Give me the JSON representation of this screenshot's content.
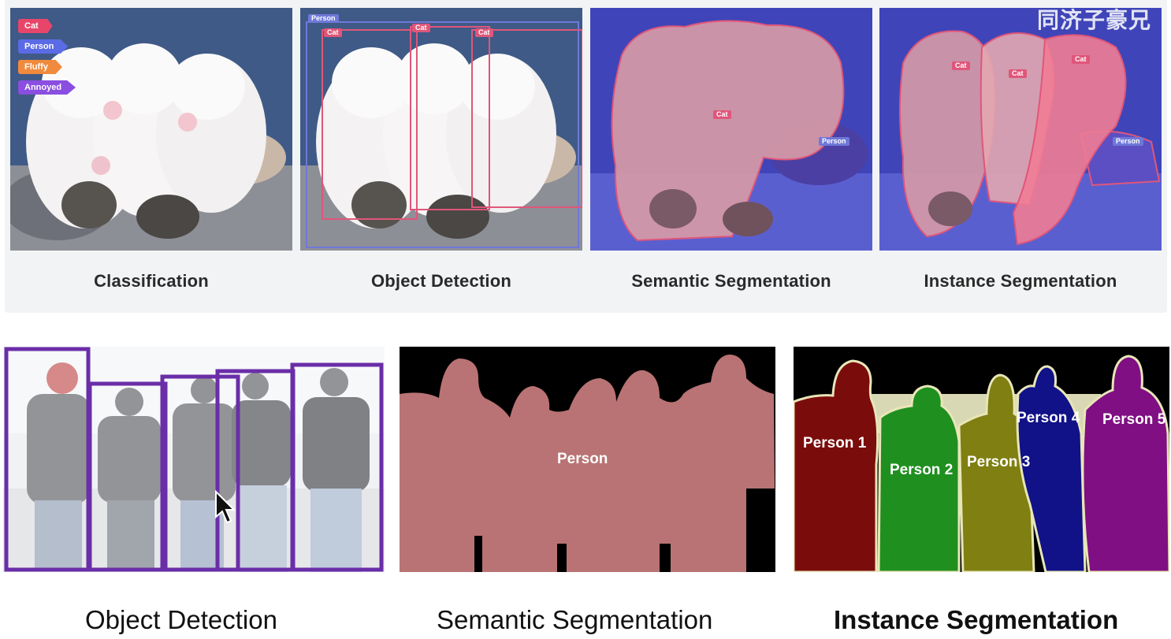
{
  "top_row": {
    "watermark": "同济子豪兄",
    "panels": [
      {
        "caption": "Classification",
        "tags": [
          {
            "label": "Cat",
            "color": "#e8456b"
          },
          {
            "label": "Person",
            "color": "#5b6be6"
          },
          {
            "label": "Fluffy",
            "color": "#f08a3c"
          },
          {
            "label": "Annoyed",
            "color": "#8a4ee0"
          }
        ]
      },
      {
        "caption": "Object Detection",
        "person_label": "Person",
        "cat_label": "Cat"
      },
      {
        "caption": "Semantic Segmentation",
        "cat_label": "Cat",
        "person_label": "Person"
      },
      {
        "caption": "Instance Segmentation",
        "cat_label": "Cat",
        "person_label": "Person"
      }
    ]
  },
  "bottom_row": {
    "detection": {
      "caption": "Object Detection"
    },
    "semantic": {
      "caption": "Semantic Segmentation",
      "label": "Person"
    },
    "instance": {
      "caption": "Instance Segmentation",
      "labels": [
        "Person 1",
        "Person 2",
        "Person 3",
        "Person 4",
        "Person 5"
      ]
    }
  },
  "colors": {
    "box_purple": "#6a2ea8",
    "semantic_person": "#b97374",
    "person_1": "#7b0c0c",
    "person_2": "#1f8f1f",
    "person_3": "#7f7f12",
    "person_4": "#111188",
    "person_5": "#7f0f82"
  }
}
